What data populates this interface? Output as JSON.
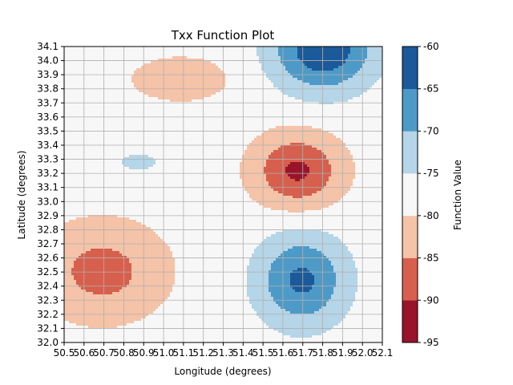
{
  "chart_data": {
    "type": "contour",
    "title": "Txx Function Plot",
    "xlabel": "Longitude (degrees)",
    "ylabel": "Latitude (degrees)",
    "xlim": [
      50.5,
      52.0
    ],
    "ylim": [
      32.0,
      34.0
    ],
    "grid": true,
    "x_ticks": [
      "50.5",
      "50.6",
      "50.7",
      "50.8",
      "50.9",
      "51.0",
      "51.1",
      "51.2",
      "51.3",
      "51.4",
      "51.5",
      "51.6",
      "51.7",
      "51.8",
      "51.9",
      "52.0",
      "52.1"
    ],
    "y_ticks": [
      "32.0",
      "32.1",
      "32.2",
      "32.3",
      "32.4",
      "32.5",
      "32.6",
      "32.7",
      "32.8",
      "32.9",
      "33.0",
      "33.1",
      "33.2",
      "33.3",
      "33.4",
      "33.5",
      "33.6",
      "33.7",
      "33.8",
      "33.9",
      "34.0",
      "34.1"
    ],
    "levels": [
      -95,
      -90,
      -85,
      -80,
      -75,
      -70,
      -65,
      -60
    ],
    "level_colors": [
      "#99142b",
      "#d6604d",
      "#f4c3a8",
      "#f7f7f7",
      "#b5d5e8",
      "#4d9ac8",
      "#1b5a9a"
    ],
    "colorbar": {
      "label": "Function Value",
      "tick_labels": [
        "-95",
        "-90",
        "-85",
        "-80",
        "-75",
        "-70",
        "-65",
        "-60"
      ]
    },
    "features": [
      {
        "kind": "max",
        "x": 51.62,
        "y": 32.42,
        "peak": -64,
        "sx": 0.15,
        "sy": 0.22
      },
      {
        "kind": "max",
        "x": 51.72,
        "y": 33.98,
        "peak": -61,
        "sx": 0.17,
        "sy": 0.2
      },
      {
        "kind": "max",
        "x": 50.85,
        "y": 33.22,
        "peak": -71,
        "sx": 0.06,
        "sy": 0.04
      },
      {
        "kind": "min",
        "x": 51.6,
        "y": 33.16,
        "peak": -91,
        "sx": 0.14,
        "sy": 0.17
      },
      {
        "kind": "min",
        "x": 50.68,
        "y": 32.48,
        "peak": -87,
        "sx": 0.2,
        "sy": 0.22
      },
      {
        "kind": "min",
        "x": 51.05,
        "y": 33.78,
        "peak": -83,
        "sx": 0.17,
        "sy": 0.11
      }
    ]
  }
}
